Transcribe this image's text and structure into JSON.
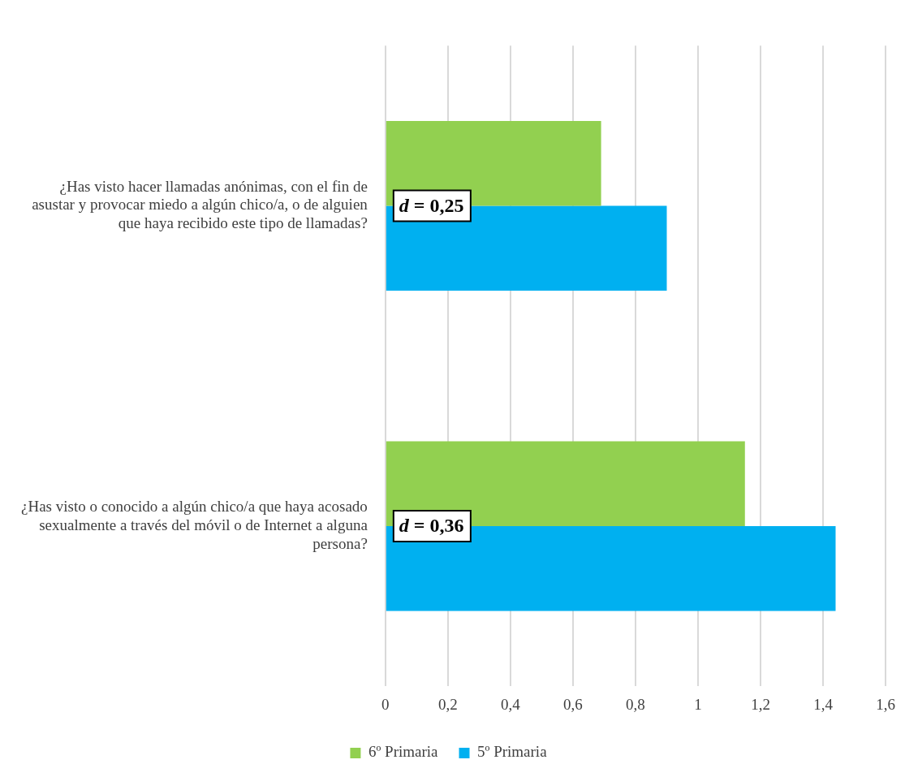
{
  "chart_data": {
    "type": "bar",
    "orientation": "horizontal",
    "categories": [
      "¿Has visto hacer llamadas anónimas, con el fin de asustar y provocar miedo a algún chico/a, o de alguien que haya recibido este tipo de llamadas?",
      "¿Has visto o conocido a algún chico/a que haya acosado sexualmente a través del móvil o de Internet a alguna persona?"
    ],
    "series": [
      {
        "name": "6º Primaria",
        "color": "#92d050",
        "values": [
          0.69,
          1.15
        ]
      },
      {
        "name": "5º Primaria",
        "color": "#00b0f0",
        "values": [
          0.9,
          1.44
        ]
      }
    ],
    "xlim": [
      0,
      1.6
    ],
    "xticks": [
      {
        "value": 0,
        "label": "0"
      },
      {
        "value": 0.2,
        "label": "0,2"
      },
      {
        "value": 0.4,
        "label": "0,4"
      },
      {
        "value": 0.6,
        "label": "0,6"
      },
      {
        "value": 0.8,
        "label": "0,8"
      },
      {
        "value": 1,
        "label": "1"
      },
      {
        "value": 1.2,
        "label": "1,2"
      },
      {
        "value": 1.4,
        "label": "1,4"
      },
      {
        "value": 1.6,
        "label": "1,6"
      }
    ],
    "grid": "x",
    "legend": "bottom",
    "annotations": [
      "d = 0,25",
      "d = 0,36"
    ]
  }
}
